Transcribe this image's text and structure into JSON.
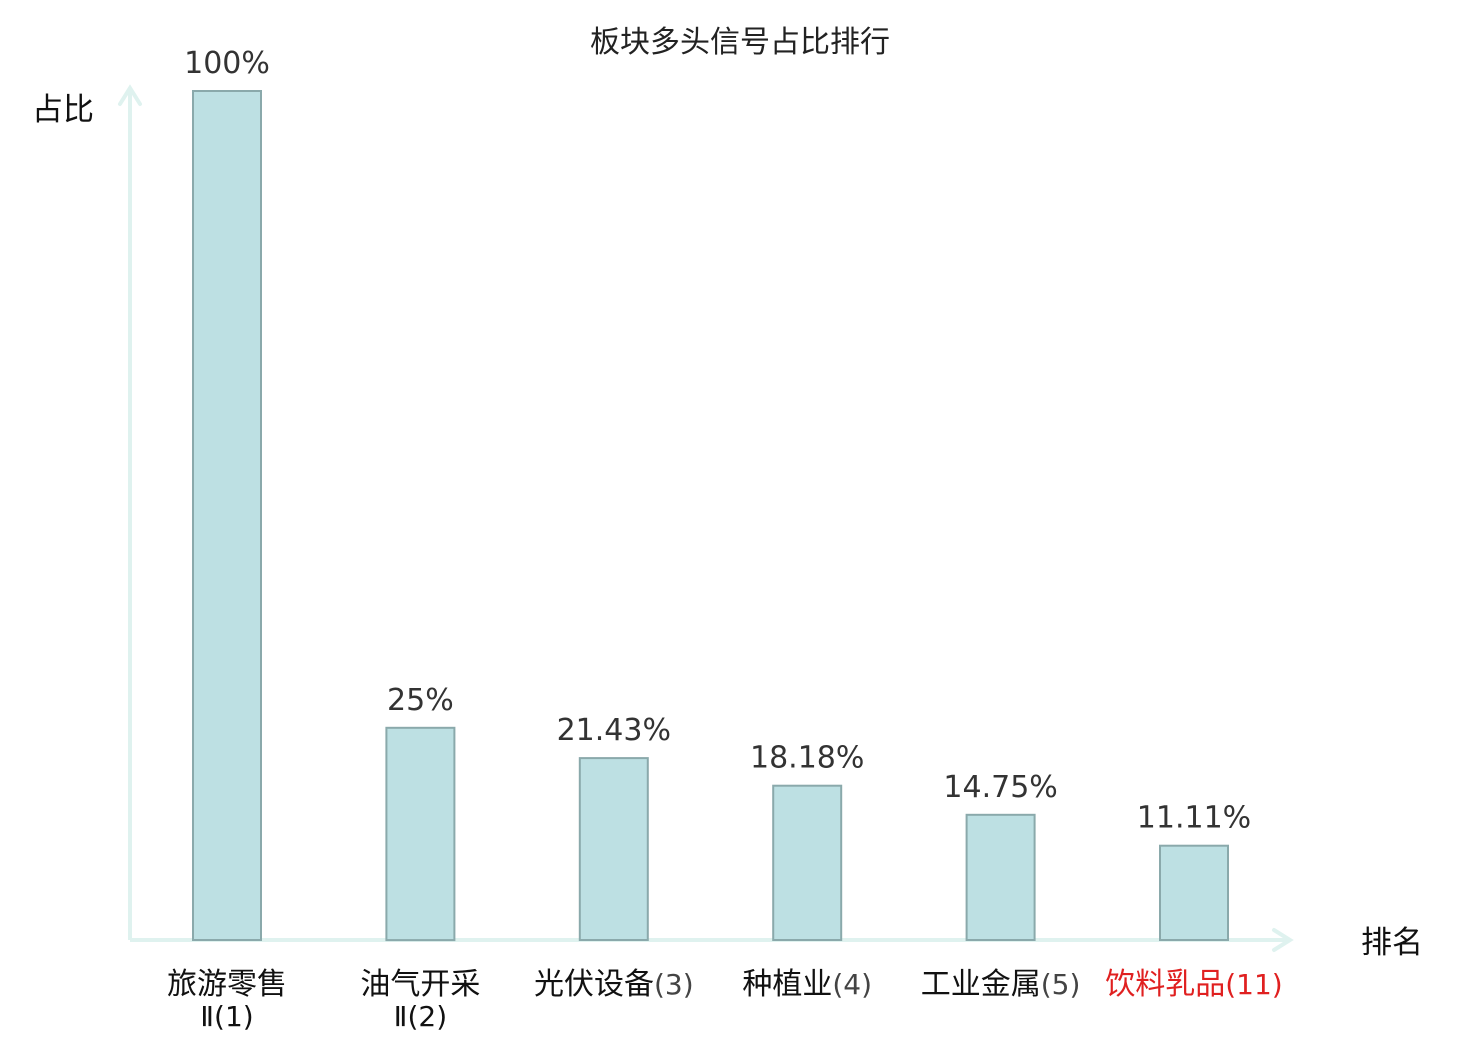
{
  "chart_data": {
    "type": "bar",
    "title": "板块多头信号占比排行",
    "ylabel": "占比",
    "xlabel": "排名",
    "ylim": [
      0,
      100
    ],
    "categories": [
      {
        "label_line1": "旅游零售",
        "label_line2": "Ⅱ(1)",
        "highlight": false
      },
      {
        "label_line1": "油气开采",
        "label_line2": "Ⅱ(2)",
        "highlight": false
      },
      {
        "label_line1": "光伏设备",
        "rank": "(3)",
        "highlight": false
      },
      {
        "label_line1": "种植业",
        "rank": "(4)",
        "highlight": false
      },
      {
        "label_line1": "工业金属",
        "rank": "(5)",
        "highlight": false
      },
      {
        "label_line1": "饮料乳品",
        "rank": "(11)",
        "highlight": true
      }
    ],
    "values": [
      100,
      25,
      21.43,
      18.18,
      14.75,
      11.11
    ],
    "value_labels": [
      "100%",
      "25%",
      "21.43%",
      "18.18%",
      "14.75%",
      "11.11%"
    ],
    "colors": {
      "bar_fill": "#bde0e3",
      "bar_stroke": "#8aa9ab",
      "axis": "#dff2ef",
      "text": "#333333",
      "highlight": "#e02020"
    },
    "grid": false,
    "legend": "none"
  }
}
